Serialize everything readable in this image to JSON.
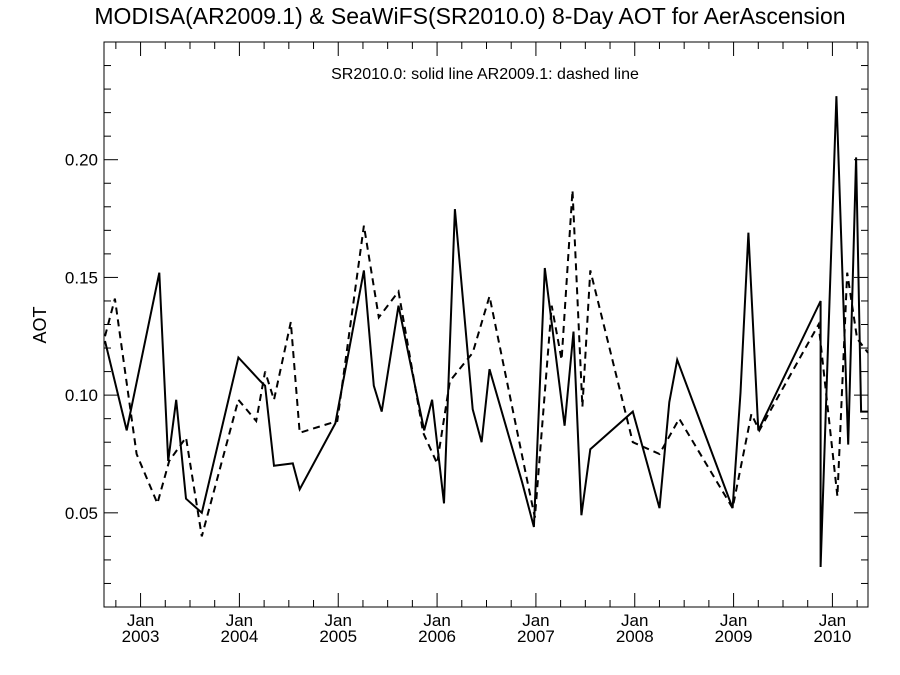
{
  "chart_data": {
    "type": "line",
    "title": "MODISA(AR2009.1) & SeaWiFS(SR2010.0) 8-Day AOT for AerAscension",
    "annotation": "SR2010.0: solid line   AR2009.1: dashed line",
    "ylabel": "AOT",
    "xlabel": "",
    "xlim": [
      2002.63,
      2010.36
    ],
    "ylim": [
      0.01,
      0.25
    ],
    "yticks": [
      0.05,
      0.1,
      0.15,
      0.2
    ],
    "ytick_labels": [
      "0.05",
      "0.10",
      "0.15",
      "0.20"
    ],
    "xticks": [
      {
        "x": 2003.0,
        "month": "Jan",
        "year": "2003"
      },
      {
        "x": 2004.0,
        "month": "Jan",
        "year": "2004"
      },
      {
        "x": 2005.0,
        "month": "Jan",
        "year": "2005"
      },
      {
        "x": 2006.0,
        "month": "Jan",
        "year": "2006"
      },
      {
        "x": 2007.0,
        "month": "Jan",
        "year": "2007"
      },
      {
        "x": 2008.0,
        "month": "Jan",
        "year": "2008"
      },
      {
        "x": 2009.0,
        "month": "Jan",
        "year": "2009"
      },
      {
        "x": 2010.0,
        "month": "Jan",
        "year": "2010"
      }
    ],
    "series": [
      {
        "name": "SR2010.0",
        "style": "solid",
        "color": "#000000",
        "x": [
          2002.64,
          2002.86,
          2003.19,
          2003.28,
          2003.36,
          2003.46,
          2003.62,
          2003.99,
          2004.21,
          2004.26,
          2004.35,
          2004.54,
          2004.61,
          2004.97,
          2005.26,
          2005.36,
          2005.44,
          2005.61,
          2005.87,
          2005.95,
          2006.07,
          2006.18,
          2006.36,
          2006.45,
          2006.53,
          2006.86,
          2006.98,
          2007.09,
          2007.29,
          2007.38,
          2007.46,
          2007.55,
          2007.98,
          2008.25,
          2008.35,
          2008.43,
          2008.99,
          2009.07,
          2009.15,
          2009.25,
          2009.88,
          2009.88,
          2010.04,
          2010.16,
          2010.24,
          2010.29,
          2010.36
        ],
        "y": [
          0.123,
          0.085,
          0.152,
          0.072,
          0.098,
          0.056,
          0.05,
          0.116,
          0.106,
          0.104,
          0.07,
          0.071,
          0.06,
          0.088,
          0.153,
          0.104,
          0.093,
          0.138,
          0.085,
          0.098,
          0.054,
          0.179,
          0.094,
          0.08,
          0.111,
          0.063,
          0.044,
          0.154,
          0.087,
          0.127,
          0.049,
          0.077,
          0.093,
          0.052,
          0.097,
          0.115,
          0.052,
          0.101,
          0.169,
          0.085,
          0.14,
          0.027,
          0.227,
          0.079,
          0.201,
          0.093,
          0.093
        ]
      },
      {
        "name": "AR2009.1",
        "style": "dashed",
        "color": "#000000",
        "x": [
          2002.64,
          2002.74,
          2002.96,
          2003.17,
          2003.29,
          2003.46,
          2003.62,
          2003.99,
          2004.17,
          2004.26,
          2004.35,
          2004.52,
          2004.61,
          2004.99,
          2005.26,
          2005.41,
          2005.61,
          2005.86,
          2006.0,
          2006.13,
          2006.36,
          2006.53,
          2006.93,
          2006.99,
          2007.16,
          2007.26,
          2007.37,
          2007.47,
          2007.55,
          2007.78,
          2007.98,
          2008.25,
          2008.45,
          2008.99,
          2009.18,
          2009.26,
          2009.86,
          2010.05,
          2010.15,
          2010.25,
          2010.36
        ],
        "y": [
          0.125,
          0.141,
          0.075,
          0.054,
          0.072,
          0.082,
          0.04,
          0.098,
          0.089,
          0.11,
          0.098,
          0.131,
          0.084,
          0.089,
          0.172,
          0.133,
          0.144,
          0.084,
          0.071,
          0.106,
          0.118,
          0.142,
          0.06,
          0.048,
          0.138,
          0.115,
          0.187,
          0.095,
          0.153,
          0.114,
          0.08,
          0.075,
          0.09,
          0.052,
          0.092,
          0.085,
          0.13,
          0.057,
          0.152,
          0.124,
          0.118
        ]
      }
    ]
  }
}
